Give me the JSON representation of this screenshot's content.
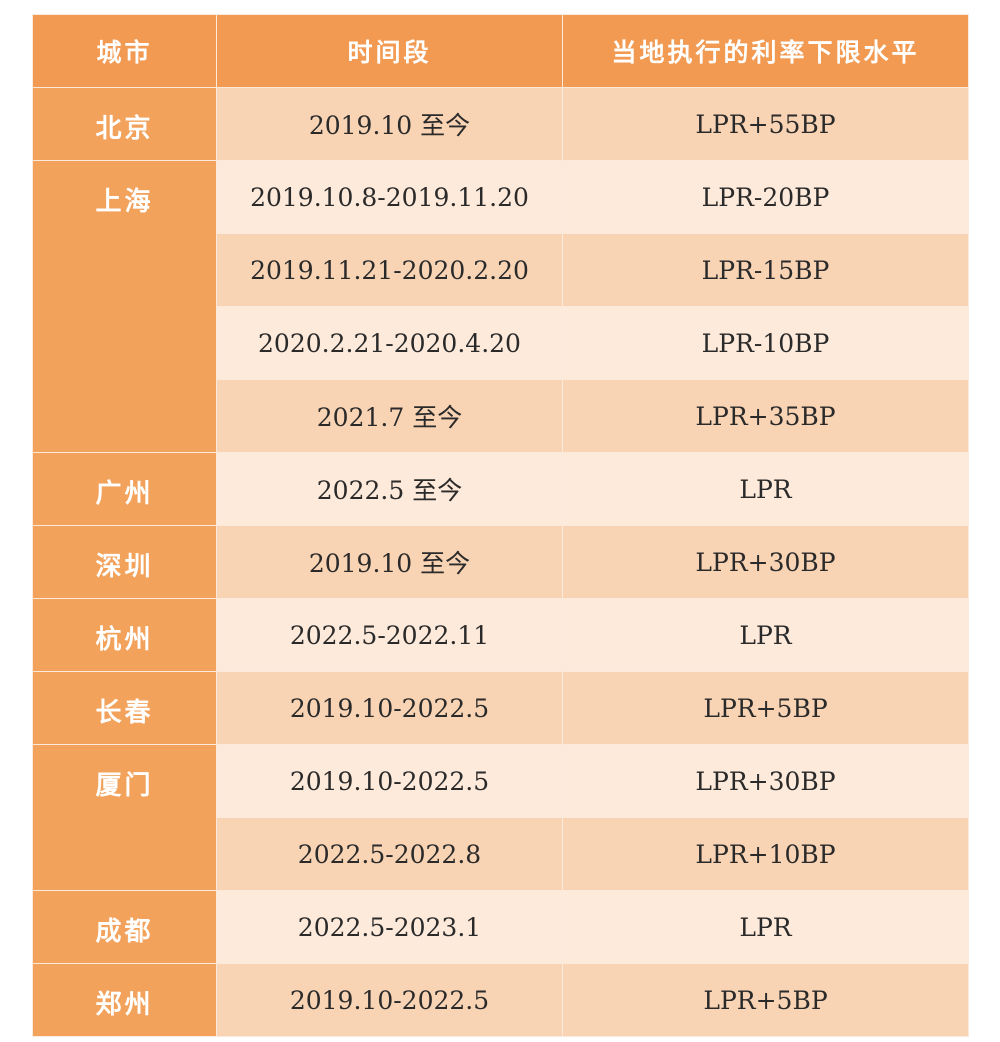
{
  "table": {
    "header": [
      "城市",
      "时间段",
      "当地执行的利率下限水平"
    ],
    "groups": [
      {
        "city": "北京",
        "rows": [
          [
            "2019.10 至今",
            "LPR+55BP"
          ]
        ]
      },
      {
        "city": "上海",
        "rows": [
          [
            "2019.10.8-2019.11.20",
            "LPR-20BP"
          ],
          [
            "2019.11.21-2020.2.20",
            "LPR-15BP"
          ],
          [
            "2020.2.21-2020.4.20",
            "LPR-10BP"
          ],
          [
            "2021.7 至今",
            "LPR+35BP"
          ]
        ]
      },
      {
        "city": "广州",
        "rows": [
          [
            "2022.5 至今",
            "LPR"
          ]
        ]
      },
      {
        "city": "深圳",
        "rows": [
          [
            "2019.10 至今",
            "LPR+30BP"
          ]
        ]
      },
      {
        "city": "杭州",
        "rows": [
          [
            "2022.5-2022.11",
            "LPR"
          ]
        ]
      },
      {
        "city": "长春",
        "rows": [
          [
            "2019.10-2022.5",
            "LPR+5BP"
          ]
        ]
      },
      {
        "city": "厦门",
        "rows": [
          [
            "2019.10-2022.5",
            "LPR+30BP"
          ],
          [
            "2022.5-2022.8",
            "LPR+10BP"
          ]
        ]
      },
      {
        "city": "成都",
        "rows": [
          [
            "2022.5-2023.1",
            "LPR"
          ]
        ]
      },
      {
        "city": "郑州",
        "rows": [
          [
            "2019.10-2022.5",
            "LPR+5BP"
          ]
        ]
      }
    ]
  }
}
